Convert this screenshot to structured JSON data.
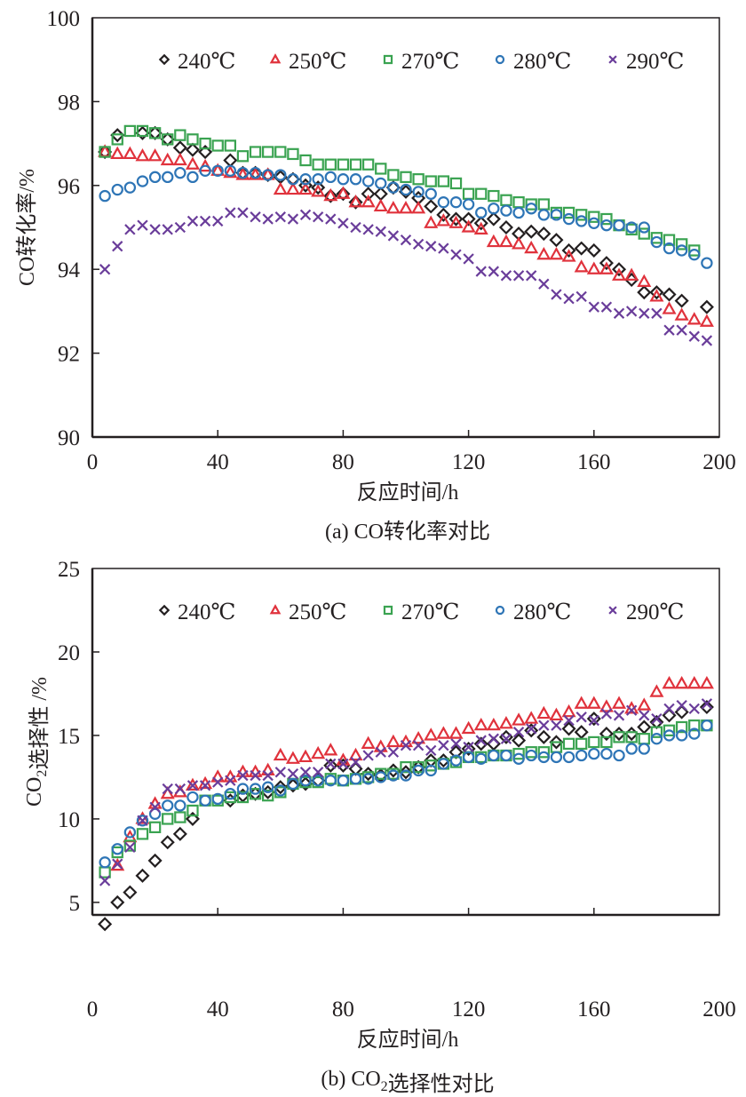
{
  "chart_data": [
    {
      "type": "scatter",
      "panel": "a",
      "caption": "(a) CO转化率对比",
      "xlabel": "反应时间/h",
      "ylabel": "CO转化率/%",
      "xlim": [
        0,
        200
      ],
      "ylim": [
        90,
        100
      ],
      "xticks": [
        0,
        40,
        80,
        120,
        160,
        200
      ],
      "yticks": [
        90,
        92,
        94,
        96,
        98,
        100
      ],
      "grid": false,
      "legend_position": "top",
      "series": [
        {
          "name": "240℃",
          "marker": "diamond",
          "color": "#231f20",
          "x": [
            4,
            8,
            16,
            20,
            24,
            28,
            32,
            36,
            44,
            48,
            52,
            56,
            60,
            64,
            68,
            72,
            76,
            80,
            84,
            88,
            92,
            96,
            100,
            104,
            108,
            112,
            116,
            120,
            124,
            128,
            132,
            136,
            140,
            144,
            148,
            152,
            156,
            160,
            164,
            168,
            172,
            176,
            180,
            184,
            188,
            196
          ],
          "y": [
            96.8,
            97.2,
            97.25,
            97.25,
            97.1,
            96.9,
            96.85,
            96.8,
            96.6,
            96.3,
            96.3,
            96.25,
            96.2,
            96.15,
            96.0,
            95.95,
            95.75,
            95.8,
            95.6,
            95.8,
            95.8,
            95.95,
            95.85,
            95.7,
            95.5,
            95.3,
            95.2,
            95.2,
            95.1,
            95.2,
            95.0,
            94.85,
            94.9,
            94.85,
            94.7,
            94.45,
            94.5,
            94.45,
            94.15,
            94.0,
            93.75,
            93.45,
            93.45,
            93.4,
            93.25,
            93.1
          ]
        },
        {
          "name": "250℃",
          "marker": "triangle",
          "color": "#e0323c",
          "x": [
            4,
            8,
            12,
            16,
            20,
            24,
            28,
            32,
            36,
            40,
            44,
            48,
            52,
            56,
            60,
            64,
            68,
            72,
            76,
            80,
            84,
            88,
            92,
            96,
            100,
            104,
            108,
            112,
            116,
            120,
            124,
            128,
            132,
            136,
            140,
            144,
            148,
            152,
            156,
            160,
            164,
            168,
            172,
            176,
            180,
            184,
            188,
            192,
            196
          ],
          "y": [
            96.8,
            96.75,
            96.75,
            96.7,
            96.7,
            96.6,
            96.6,
            96.5,
            96.45,
            96.35,
            96.3,
            96.25,
            96.25,
            96.25,
            95.9,
            95.9,
            95.9,
            95.85,
            95.75,
            95.8,
            95.6,
            95.6,
            95.5,
            95.45,
            95.45,
            95.45,
            95.1,
            95.15,
            95.1,
            95.0,
            94.95,
            94.65,
            94.65,
            94.6,
            94.5,
            94.35,
            94.35,
            94.3,
            94.05,
            94.0,
            94.0,
            93.85,
            93.85,
            93.7,
            93.35,
            93.05,
            92.9,
            92.8,
            92.75
          ]
        },
        {
          "name": "270℃",
          "marker": "square",
          "color": "#3aa351",
          "x": [
            4,
            8,
            12,
            16,
            20,
            24,
            28,
            32,
            36,
            40,
            44,
            48,
            52,
            56,
            60,
            64,
            68,
            72,
            76,
            80,
            84,
            88,
            92,
            96,
            100,
            104,
            108,
            112,
            116,
            120,
            124,
            128,
            132,
            136,
            140,
            144,
            148,
            152,
            156,
            160,
            164,
            168,
            172,
            176,
            180,
            184,
            188,
            192
          ],
          "y": [
            96.8,
            97.1,
            97.3,
            97.3,
            97.25,
            97.1,
            97.2,
            97.1,
            97.0,
            96.95,
            96.95,
            96.7,
            96.8,
            96.8,
            96.8,
            96.75,
            96.6,
            96.5,
            96.5,
            96.5,
            96.5,
            96.5,
            96.4,
            96.25,
            96.2,
            96.15,
            96.1,
            96.1,
            96.05,
            95.8,
            95.8,
            95.75,
            95.65,
            95.6,
            95.55,
            95.55,
            95.35,
            95.35,
            95.3,
            95.25,
            95.2,
            95.05,
            94.95,
            94.85,
            94.75,
            94.7,
            94.6,
            94.45
          ]
        },
        {
          "name": "280℃",
          "marker": "circle",
          "color": "#2e75b6",
          "x": [
            4,
            8,
            12,
            16,
            20,
            24,
            28,
            32,
            36,
            40,
            44,
            48,
            52,
            56,
            60,
            64,
            68,
            72,
            76,
            80,
            84,
            88,
            92,
            96,
            100,
            104,
            108,
            112,
            116,
            120,
            124,
            128,
            132,
            136,
            140,
            144,
            148,
            152,
            156,
            160,
            164,
            168,
            172,
            176,
            180,
            184,
            188,
            192,
            196
          ],
          "y": [
            95.75,
            95.9,
            95.95,
            96.1,
            96.2,
            96.2,
            96.3,
            96.2,
            96.35,
            96.35,
            96.35,
            96.3,
            96.3,
            96.25,
            96.25,
            96.15,
            96.15,
            96.15,
            96.2,
            96.15,
            96.15,
            96.1,
            96.05,
            95.95,
            95.9,
            95.85,
            95.8,
            95.6,
            95.6,
            95.55,
            95.35,
            95.45,
            95.4,
            95.35,
            95.45,
            95.3,
            95.3,
            95.2,
            95.15,
            95.1,
            95.05,
            95.05,
            95.0,
            95.0,
            94.65,
            94.5,
            94.45,
            94.35,
            94.15
          ]
        },
        {
          "name": "290℃",
          "marker": "cross",
          "color": "#6a3d9a",
          "x": [
            4,
            8,
            12,
            16,
            20,
            24,
            28,
            32,
            36,
            40,
            44,
            48,
            52,
            56,
            60,
            64,
            68,
            72,
            76,
            80,
            84,
            88,
            92,
            96,
            100,
            104,
            108,
            112,
            116,
            120,
            124,
            128,
            132,
            136,
            140,
            144,
            148,
            152,
            156,
            160,
            164,
            168,
            172,
            176,
            180,
            184,
            188,
            192,
            196
          ],
          "y": [
            94.0,
            94.55,
            94.95,
            95.05,
            94.95,
            94.95,
            95.0,
            95.15,
            95.15,
            95.15,
            95.35,
            95.35,
            95.25,
            95.2,
            95.25,
            95.2,
            95.3,
            95.25,
            95.2,
            95.1,
            95.0,
            94.95,
            94.9,
            94.8,
            94.7,
            94.6,
            94.55,
            94.5,
            94.35,
            94.25,
            93.95,
            93.95,
            93.85,
            93.85,
            93.85,
            93.65,
            93.4,
            93.3,
            93.35,
            93.1,
            93.1,
            92.95,
            93.0,
            92.95,
            92.95,
            92.55,
            92.55,
            92.4,
            92.3
          ]
        }
      ]
    },
    {
      "type": "scatter",
      "panel": "b",
      "caption": "(b) CO₂选择性对比",
      "xlabel": "反应时间/h",
      "ylabel": "CO₂选择性 /%",
      "xlim": [
        0,
        200
      ],
      "ylim": [
        0,
        25
      ],
      "xticks": [
        0,
        40,
        80,
        120,
        160,
        200
      ],
      "yticks": [
        5,
        10,
        15,
        20,
        25
      ],
      "grid": false,
      "legend_position": "top",
      "series": [
        {
          "name": "240℃",
          "marker": "diamond",
          "color": "#231f20",
          "x": [
            4,
            8,
            12,
            16,
            20,
            24,
            28,
            32,
            44,
            48,
            52,
            56,
            60,
            64,
            68,
            72,
            76,
            80,
            84,
            88,
            92,
            96,
            100,
            104,
            108,
            112,
            116,
            120,
            124,
            128,
            132,
            136,
            140,
            144,
            148,
            152,
            156,
            160,
            164,
            168,
            172,
            176,
            180,
            184,
            188,
            196
          ],
          "y": [
            3.7,
            5.0,
            5.6,
            6.6,
            7.5,
            8.6,
            9.1,
            10.0,
            11.1,
            11.4,
            11.5,
            11.6,
            11.9,
            12.0,
            12.1,
            12.3,
            13.2,
            13.2,
            13.0,
            12.7,
            12.6,
            12.9,
            12.8,
            13.1,
            13.5,
            13.5,
            14.0,
            14.2,
            14.5,
            14.5,
            14.9,
            14.7,
            15.3,
            14.9,
            14.6,
            15.4,
            15.2,
            16.0,
            15.1,
            15.1,
            15.1,
            15.5,
            15.8,
            16.2,
            16.4,
            16.7
          ]
        },
        {
          "name": "250℃",
          "marker": "triangle",
          "color": "#e0323c",
          "x": [
            8,
            12,
            16,
            20,
            24,
            28,
            32,
            36,
            40,
            44,
            48,
            52,
            56,
            60,
            64,
            68,
            72,
            76,
            80,
            84,
            88,
            92,
            96,
            100,
            104,
            108,
            112,
            116,
            120,
            124,
            128,
            132,
            136,
            140,
            144,
            148,
            152,
            156,
            160,
            164,
            168,
            172,
            176,
            180,
            184,
            188,
            192,
            196
          ],
          "y": [
            7.2,
            8.9,
            10.0,
            10.9,
            11.5,
            11.6,
            12.0,
            12.1,
            12.5,
            12.5,
            12.8,
            12.8,
            12.9,
            13.8,
            13.6,
            13.7,
            13.9,
            14.1,
            13.5,
            13.8,
            14.5,
            14.3,
            14.6,
            14.6,
            14.8,
            15.0,
            15.1,
            15.1,
            15.4,
            15.6,
            15.6,
            15.7,
            15.9,
            16.0,
            16.3,
            16.2,
            16.4,
            16.9,
            16.9,
            16.7,
            16.9,
            16.6,
            16.8,
            17.6,
            18.1,
            18.1,
            18.1,
            18.1
          ]
        },
        {
          "name": "270℃",
          "marker": "square",
          "color": "#3aa351",
          "x": [
            4,
            8,
            12,
            16,
            20,
            24,
            28,
            32,
            36,
            40,
            44,
            48,
            52,
            56,
            60,
            64,
            68,
            72,
            76,
            80,
            84,
            88,
            92,
            96,
            100,
            104,
            108,
            112,
            116,
            120,
            124,
            128,
            132,
            136,
            140,
            144,
            148,
            152,
            156,
            160,
            164,
            168,
            172,
            176,
            180,
            184,
            188,
            192,
            196
          ],
          "y": [
            6.8,
            8.0,
            8.4,
            9.1,
            9.5,
            10.0,
            10.1,
            10.5,
            11.1,
            11.1,
            11.3,
            11.3,
            11.5,
            11.4,
            11.6,
            12.1,
            12.2,
            12.2,
            12.4,
            12.3,
            12.4,
            12.5,
            12.7,
            12.7,
            13.1,
            13.1,
            13.2,
            13.3,
            13.4,
            13.7,
            13.7,
            13.8,
            13.8,
            13.9,
            14.0,
            14.0,
            14.3,
            14.5,
            14.5,
            14.6,
            14.6,
            14.9,
            14.9,
            14.8,
            15.2,
            15.3,
            15.5,
            15.6,
            15.6
          ]
        },
        {
          "name": "280℃",
          "marker": "circle",
          "color": "#2e75b6",
          "x": [
            4,
            8,
            12,
            16,
            20,
            24,
            28,
            32,
            36,
            40,
            44,
            48,
            52,
            56,
            60,
            64,
            68,
            72,
            76,
            80,
            84,
            88,
            92,
            96,
            100,
            104,
            108,
            112,
            116,
            120,
            124,
            128,
            132,
            136,
            140,
            144,
            148,
            152,
            156,
            160,
            164,
            168,
            172,
            176,
            180,
            184,
            188,
            192,
            196
          ],
          "y": [
            7.4,
            8.2,
            9.2,
            9.9,
            10.3,
            10.8,
            10.8,
            11.3,
            11.1,
            11.2,
            11.5,
            11.8,
            11.8,
            11.9,
            11.7,
            12.1,
            12.3,
            12.3,
            12.3,
            12.3,
            12.4,
            12.4,
            12.5,
            12.6,
            12.6,
            12.9,
            12.9,
            13.3,
            13.5,
            13.7,
            13.6,
            13.8,
            13.8,
            13.6,
            13.8,
            13.7,
            13.7,
            13.7,
            13.8,
            13.9,
            13.9,
            13.8,
            14.2,
            14.2,
            14.8,
            15.0,
            15.0,
            15.1,
            15.6
          ]
        },
        {
          "name": "290℃",
          "marker": "cross",
          "color": "#6a3d9a",
          "x": [
            4,
            8,
            12,
            16,
            20,
            24,
            28,
            32,
            36,
            40,
            44,
            48,
            52,
            56,
            60,
            64,
            68,
            72,
            76,
            80,
            84,
            88,
            92,
            96,
            100,
            104,
            108,
            112,
            116,
            120,
            124,
            128,
            132,
            136,
            140,
            144,
            148,
            152,
            156,
            160,
            164,
            168,
            172,
            176,
            180,
            184,
            188,
            192,
            196
          ],
          "y": [
            6.3,
            7.3,
            8.3,
            9.9,
            10.7,
            11.8,
            11.8,
            12.0,
            12.0,
            12.2,
            12.3,
            12.6,
            12.6,
            12.6,
            12.8,
            12.7,
            12.8,
            12.8,
            13.3,
            13.3,
            13.4,
            13.8,
            14.0,
            14.0,
            14.4,
            14.4,
            14.1,
            14.4,
            14.5,
            14.3,
            14.7,
            14.8,
            14.8,
            15.2,
            15.4,
            15.6,
            15.6,
            15.9,
            16.1,
            15.9,
            16.3,
            16.2,
            16.5,
            16.2,
            16.0,
            16.6,
            16.8,
            16.6,
            16.9
          ]
        }
      ]
    }
  ]
}
